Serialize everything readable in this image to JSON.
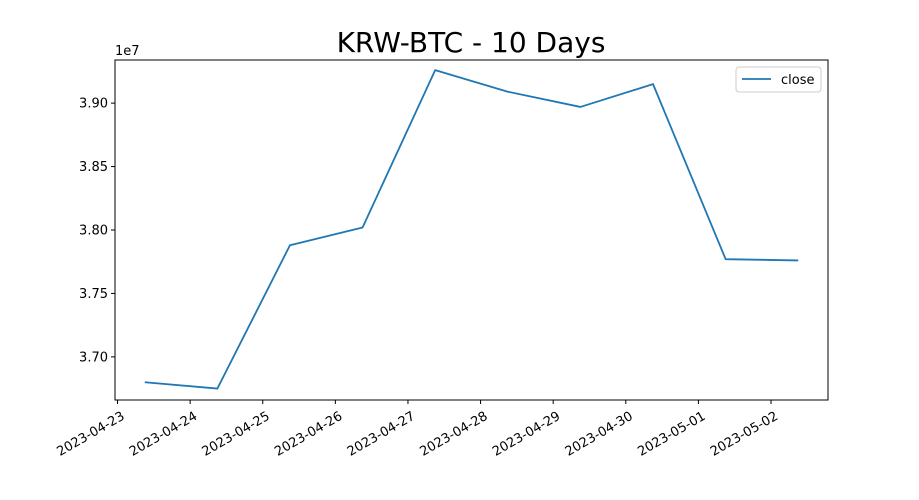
{
  "chart_data": {
    "type": "line",
    "title": "KRW-BTC - 10 Days",
    "xlabel": "",
    "ylabel": "",
    "y_offset_label": "1e7",
    "y_multiplier": 10000000,
    "x": [
      "2023-04-23T09:00",
      "2023-04-24T09:00",
      "2023-04-25T09:00",
      "2023-04-26T09:00",
      "2023-04-27T09:00",
      "2023-04-28T09:00",
      "2023-04-29T09:00",
      "2023-04-30T09:00",
      "2023-05-01T09:00",
      "2023-05-02T09:00"
    ],
    "series": [
      {
        "name": "close",
        "color": "#1f77b4",
        "values": [
          36800000,
          36750000,
          37880000,
          38020000,
          39260000,
          39090000,
          38970000,
          39150000,
          37770000,
          37760000
        ]
      }
    ],
    "xlim": [
      "2023-04-22T23:10",
      "2023-05-02T18:50"
    ],
    "ylim": [
      36660000,
      39340000
    ],
    "x_ticks": [
      "2023-04-23",
      "2023-04-24",
      "2023-04-25",
      "2023-04-26",
      "2023-04-27",
      "2023-04-28",
      "2023-04-29",
      "2023-04-30",
      "2023-05-01",
      "2023-05-02"
    ],
    "y_ticks": [
      37000000,
      37500000,
      38000000,
      38500000,
      39000000
    ],
    "y_tick_labels": [
      "3.70",
      "3.75",
      "3.80",
      "3.85",
      "3.90"
    ],
    "grid": false,
    "legend": "top-right"
  }
}
